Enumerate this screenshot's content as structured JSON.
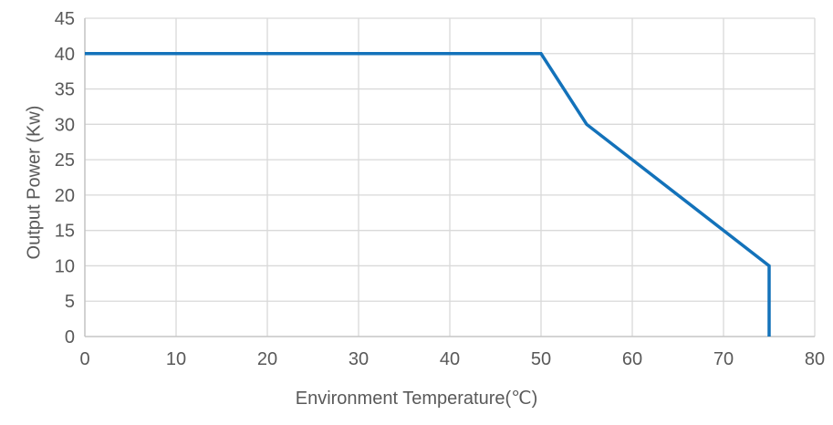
{
  "chart_data": {
    "type": "line",
    "title": "",
    "xlabel": "Environment Temperature(℃)",
    "ylabel": "Output Power (Kw)",
    "points": [
      [
        0,
        40
      ],
      [
        50,
        40
      ],
      [
        55,
        30
      ],
      [
        75,
        10
      ],
      [
        75,
        0
      ]
    ],
    "xlim": [
      0,
      80
    ],
    "ylim": [
      0,
      45
    ],
    "xticks": [
      0,
      10,
      20,
      30,
      40,
      50,
      60,
      70,
      80
    ],
    "yticks": [
      0,
      5,
      10,
      15,
      20,
      25,
      30,
      35,
      40,
      45
    ],
    "grid": true,
    "legend_position": "none",
    "colors": {
      "line": "#1372BA",
      "gridline": "#D9D9D9",
      "axis": "#C0C0C0",
      "text": "#595959"
    }
  }
}
